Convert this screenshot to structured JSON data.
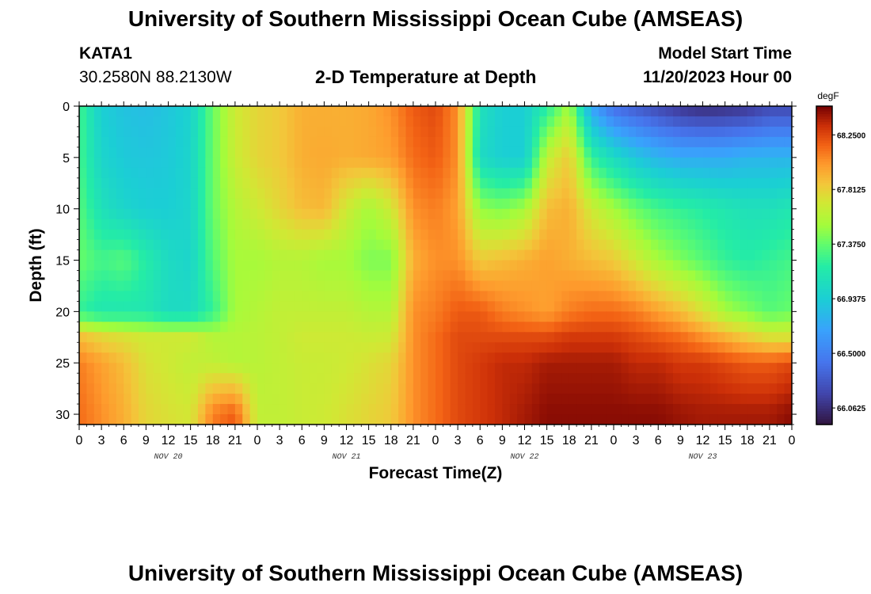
{
  "header": {
    "title_top": "University of Southern Mississippi Ocean Cube (AMSEAS)",
    "station": "KATA1",
    "coords": "30.2580N  88.2130W",
    "subtitle": "2-D Temperature at Depth",
    "model_start_label": "Model Start Time",
    "model_start_value": "11/20/2023 Hour 00",
    "title_bottom": "University of Southern Mississippi Ocean Cube (AMSEAS)"
  },
  "chart_data": {
    "type": "heatmap",
    "title": "2-D Temperature at Depth",
    "xlabel": "Forecast Time(Z)",
    "ylabel": "Depth (ft)",
    "x_range_hours": [
      0,
      96
    ],
    "x_tick_labels": [
      "0",
      "3",
      "6",
      "9",
      "12",
      "15",
      "18",
      "21",
      "0",
      "3",
      "6",
      "9",
      "12",
      "15",
      "18",
      "21",
      "0",
      "3",
      "6",
      "9",
      "12",
      "15",
      "18",
      "21",
      "0",
      "3",
      "6",
      "9",
      "12",
      "15",
      "18",
      "21",
      "0"
    ],
    "day_labels": [
      "NOV 20",
      "NOV 21",
      "NOV 22",
      "NOV 23"
    ],
    "y_range_ft": [
      0,
      31
    ],
    "y_ticks": [
      0,
      5,
      10,
      15,
      20,
      25,
      30
    ],
    "colorbar": {
      "unit": "degF",
      "range": [
        65.93,
        68.48
      ],
      "tick_labels": [
        "68.2500",
        "67.8125",
        "67.3750",
        "66.9375",
        "66.5000",
        "66.0625"
      ],
      "tick_values": [
        68.25,
        67.8125,
        67.375,
        66.9375,
        66.5,
        66.0625
      ]
    },
    "depth_rows_ft": [
      0,
      5,
      10,
      15,
      20,
      22.5,
      25,
      30
    ],
    "time_cols_hours": [
      0,
      3,
      6,
      9,
      12,
      15,
      18,
      21,
      24,
      27,
      30,
      33,
      36,
      39,
      42,
      45,
      48,
      51,
      54,
      57,
      60,
      63,
      66,
      69,
      72,
      75,
      78,
      81,
      84,
      87,
      90,
      93,
      96
    ],
    "values_degF": [
      [
        67.3,
        66.95,
        66.88,
        66.85,
        66.9,
        66.98,
        67.4,
        67.7,
        67.8,
        67.85,
        67.95,
        67.95,
        67.95,
        67.97,
        68.05,
        68.2,
        68.25,
        68.05,
        67.1,
        66.95,
        66.95,
        67.2,
        67.55,
        66.7,
        66.4,
        66.3,
        66.2,
        66.1,
        66.05,
        66.07,
        66.1,
        66.2,
        66.2
      ],
      [
        67.3,
        67.0,
        66.92,
        66.9,
        66.92,
        67.0,
        67.4,
        67.68,
        67.8,
        67.85,
        67.95,
        67.97,
        67.95,
        67.97,
        68.0,
        68.15,
        68.2,
        68.05,
        67.05,
        66.95,
        66.95,
        67.65,
        67.85,
        67.25,
        67.05,
        66.9,
        66.8,
        66.75,
        66.75,
        66.75,
        66.8,
        66.8,
        66.8
      ],
      [
        67.35,
        67.1,
        67.0,
        66.95,
        66.95,
        67.0,
        67.4,
        67.6,
        67.7,
        67.8,
        67.9,
        67.92,
        67.7,
        67.55,
        67.7,
        68.05,
        68.1,
        68.0,
        67.5,
        67.45,
        67.55,
        67.9,
        67.95,
        67.7,
        67.55,
        67.4,
        67.3,
        67.25,
        67.2,
        67.15,
        67.1,
        67.1,
        67.15
      ],
      [
        67.4,
        67.3,
        67.35,
        67.2,
        67.05,
        67.0,
        67.35,
        67.55,
        67.55,
        67.6,
        67.6,
        67.55,
        67.55,
        67.45,
        67.45,
        67.95,
        68.05,
        68.05,
        67.85,
        67.9,
        67.95,
        68.0,
        67.95,
        67.9,
        67.85,
        67.7,
        67.55,
        67.45,
        67.35,
        67.25,
        67.2,
        67.25,
        67.3
      ],
      [
        67.25,
        67.15,
        67.15,
        67.15,
        67.05,
        67.05,
        67.25,
        67.55,
        67.6,
        67.65,
        67.65,
        67.65,
        67.65,
        67.6,
        67.6,
        68.05,
        68.1,
        68.2,
        68.2,
        68.1,
        68.05,
        68.0,
        68.1,
        68.15,
        68.15,
        68.1,
        68.0,
        67.9,
        67.75,
        67.55,
        67.45,
        67.35,
        67.4
      ],
      [
        67.9,
        67.8,
        67.75,
        67.7,
        67.7,
        67.7,
        67.6,
        67.6,
        67.62,
        67.65,
        67.7,
        67.7,
        67.7,
        67.68,
        67.7,
        68.05,
        68.15,
        68.25,
        68.25,
        68.25,
        68.25,
        68.25,
        68.3,
        68.3,
        68.3,
        68.25,
        68.2,
        68.15,
        68.05,
        67.95,
        67.85,
        67.75,
        67.75
      ],
      [
        68.1,
        68.0,
        67.9,
        67.75,
        67.7,
        67.65,
        67.65,
        67.6,
        67.62,
        67.65,
        67.68,
        67.68,
        67.7,
        67.75,
        67.8,
        68.05,
        68.15,
        68.25,
        68.3,
        68.35,
        68.35,
        68.4,
        68.4,
        68.4,
        68.4,
        68.35,
        68.35,
        68.3,
        68.3,
        68.25,
        68.2,
        68.2,
        68.25
      ],
      [
        68.15,
        68.05,
        67.95,
        67.8,
        67.75,
        67.72,
        68.1,
        68.2,
        67.65,
        67.65,
        67.68,
        67.7,
        67.75,
        67.8,
        67.85,
        68.05,
        68.15,
        68.25,
        68.3,
        68.35,
        68.4,
        68.45,
        68.45,
        68.45,
        68.45,
        68.45,
        68.45,
        68.42,
        68.4,
        68.4,
        68.4,
        68.4,
        68.45
      ]
    ]
  }
}
